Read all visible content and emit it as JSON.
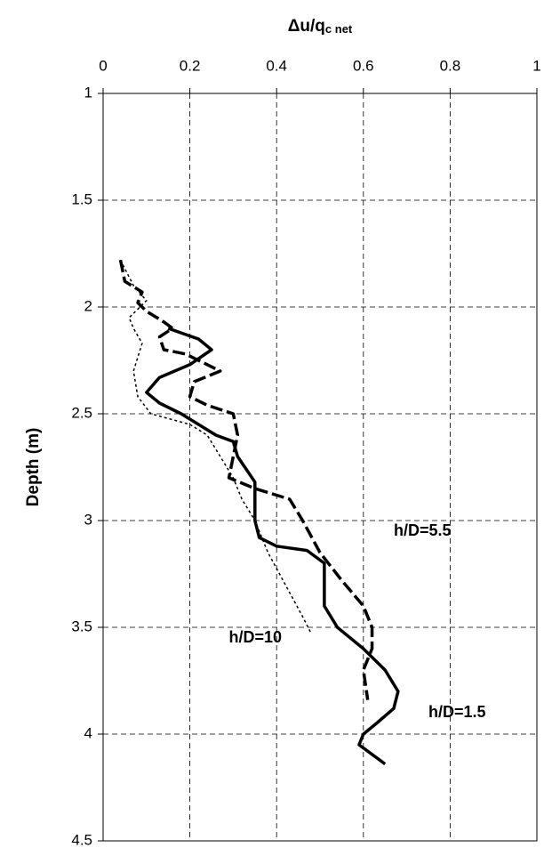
{
  "chart_data": {
    "type": "line",
    "title": "Δu/q",
    "title_subscript": "c net",
    "y_label": "Depth (m)",
    "xlim": [
      0,
      1
    ],
    "xticks": [
      0,
      0.2,
      0.4,
      0.6,
      0.8,
      1
    ],
    "ylim": [
      1,
      4.5
    ],
    "yticks": [
      1,
      1.5,
      2,
      2.5,
      3,
      3.5,
      4,
      4.5
    ],
    "y_inverted": true,
    "x_axis_position": "top",
    "grid": true,
    "series": [
      {
        "name": "h/D=1.5",
        "color": "#000000",
        "style": "solid",
        "values": [
          0.15,
          0.22,
          0.25,
          0.2,
          0.13,
          0.1,
          0.13,
          0.18,
          0.22,
          0.26,
          0.3,
          0.31,
          0.33,
          0.35,
          0.35,
          0.35,
          0.36,
          0.4,
          0.47,
          0.51,
          0.51,
          0.54,
          0.6,
          0.65,
          0.68,
          0.67,
          0.63,
          0.6,
          0.59,
          0.61,
          0.65
        ],
        "depth": [
          2.1,
          2.15,
          2.2,
          2.27,
          2.33,
          2.4,
          2.45,
          2.5,
          2.55,
          2.6,
          2.63,
          2.7,
          2.76,
          2.82,
          2.9,
          3.0,
          3.08,
          3.12,
          3.14,
          3.2,
          3.4,
          3.5,
          3.6,
          3.7,
          3.8,
          3.88,
          3.95,
          4.0,
          4.05,
          4.08,
          4.14
        ],
        "label_at": [
          0.75,
          3.9
        ]
      },
      {
        "name": "h/D=5.5",
        "color": "#000000",
        "style": "dashed",
        "values": [
          0.04,
          0.05,
          0.09,
          0.08,
          0.1,
          0.14,
          0.16,
          0.13,
          0.14,
          0.19,
          0.23,
          0.27,
          0.21,
          0.2,
          0.24,
          0.3,
          0.31,
          0.3,
          0.29,
          0.35,
          0.43,
          0.46,
          0.5,
          0.55,
          0.6,
          0.62,
          0.62,
          0.6,
          0.61
        ],
        "depth": [
          1.78,
          1.88,
          1.93,
          1.98,
          2.02,
          2.07,
          2.1,
          2.14,
          2.2,
          2.22,
          2.26,
          2.3,
          2.35,
          2.42,
          2.46,
          2.5,
          2.6,
          2.7,
          2.8,
          2.85,
          2.9,
          3.0,
          3.15,
          3.28,
          3.4,
          3.5,
          3.6,
          3.7,
          3.84
        ],
        "label_at": [
          0.67,
          3.05
        ]
      },
      {
        "name": "h/D=10",
        "color": "#000000",
        "style": "dotted",
        "values": [
          0.04,
          0.07,
          0.1,
          0.06,
          0.07,
          0.09,
          0.07,
          0.08,
          0.11,
          0.2,
          0.24,
          0.27,
          0.3,
          0.32,
          0.35,
          0.38,
          0.42,
          0.46,
          0.48
        ],
        "depth": [
          1.78,
          1.9,
          1.97,
          2.05,
          2.1,
          2.17,
          2.3,
          2.42,
          2.5,
          2.55,
          2.6,
          2.7,
          2.8,
          2.9,
          3.0,
          3.15,
          3.3,
          3.45,
          3.53
        ],
        "label_at": [
          0.29,
          3.55
        ]
      }
    ]
  }
}
